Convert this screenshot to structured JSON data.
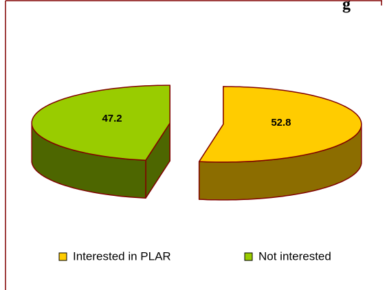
{
  "chart_data": {
    "type": "pie",
    "title": "g",
    "categories": [
      "Interested in PLAR",
      "Not interested"
    ],
    "values": [
      52.8,
      47.2
    ],
    "colors": [
      "#ffcc00",
      "#99cc00"
    ],
    "side_colors": [
      "#8c6d00",
      "#4d6600"
    ],
    "exploded": true,
    "three_d": true,
    "legend": "bottom"
  }
}
